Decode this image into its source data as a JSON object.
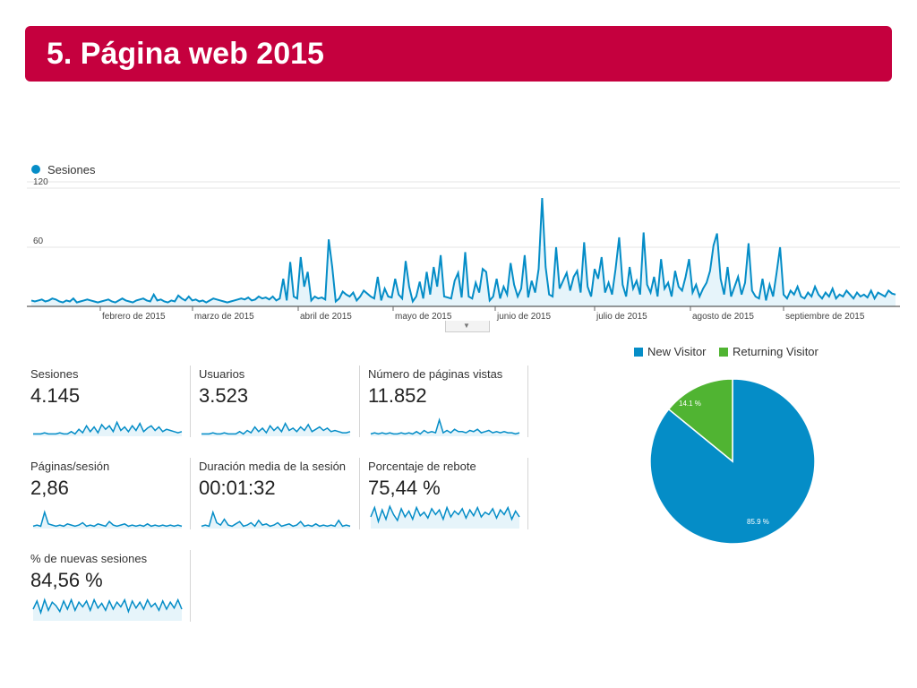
{
  "header": {
    "title": "5. Página web 2015"
  },
  "colors": {
    "accent": "#c5003e",
    "series": "#058dc7",
    "fill": "#e6f4fa",
    "returning": "#50b432"
  },
  "chart_data": [
    {
      "type": "area",
      "legend": "Sesiones",
      "ylim": [
        0,
        120
      ],
      "yticks": [
        60,
        120
      ],
      "month_labels": [
        "febrero de 2015",
        "marzo de 2015",
        "abril de 2015",
        "mayo de 2015",
        "junio de 2015",
        "julio de 2015",
        "agosto de 2015",
        "septiembre de 2015"
      ],
      "values": [
        6,
        5,
        6,
        7,
        5,
        6,
        8,
        7,
        5,
        4,
        6,
        5,
        8,
        4,
        5,
        6,
        7,
        6,
        5,
        4,
        5,
        6,
        7,
        5,
        4,
        6,
        8,
        6,
        5,
        4,
        6,
        7,
        8,
        6,
        5,
        12,
        6,
        7,
        5,
        4,
        6,
        5,
        11,
        8,
        6,
        10,
        6,
        7,
        5,
        6,
        4,
        6,
        8,
        7,
        6,
        5,
        4,
        5,
        6,
        7,
        8,
        7,
        9,
        6,
        7,
        10,
        8,
        9,
        7,
        10,
        6,
        8,
        28,
        6,
        45,
        10,
        8,
        50,
        20,
        35,
        6,
        10,
        8,
        9,
        7,
        68,
        40,
        5,
        8,
        15,
        12,
        10,
        14,
        6,
        10,
        16,
        13,
        10,
        8,
        30,
        6,
        18,
        10,
        9,
        28,
        12,
        8,
        46,
        20,
        5,
        10,
        25,
        8,
        35,
        12,
        40,
        20,
        52,
        10,
        9,
        8,
        26,
        34,
        9,
        55,
        10,
        8,
        24,
        14,
        38,
        35,
        6,
        10,
        28,
        8,
        20,
        12,
        44,
        22,
        10,
        18,
        52,
        9,
        26,
        14,
        38,
        110,
        40,
        12,
        10,
        60,
        18,
        26,
        34,
        16,
        30,
        36,
        14,
        65,
        20,
        10,
        38,
        28,
        50,
        14,
        24,
        12,
        38,
        70,
        22,
        10,
        40,
        18,
        26,
        12,
        75,
        22,
        14,
        30,
        10,
        48,
        18,
        24,
        10,
        36,
        20,
        16,
        30,
        48,
        14,
        22,
        10,
        18,
        24,
        36,
        62,
        74,
        28,
        12,
        40,
        10,
        20,
        30,
        12,
        24,
        64,
        16,
        10,
        8,
        28,
        6,
        22,
        10,
        34,
        60,
        12,
        8,
        16,
        12,
        20,
        10,
        8,
        14,
        10,
        20,
        12,
        8,
        14,
        10,
        18,
        8,
        12,
        10,
        16,
        12,
        8,
        14,
        10,
        12,
        9,
        16,
        8,
        14,
        12,
        10,
        16,
        13,
        12
      ],
      "series_name": "Sesiones"
    },
    {
      "type": "pie",
      "labels": [
        "New Visitor",
        "Returning Visitor"
      ],
      "values": [
        85.9,
        14.1
      ],
      "value_labels": [
        "85.9 %",
        "14.1 %"
      ]
    }
  ],
  "metrics": [
    {
      "label": "Sesiones",
      "value": "4.145",
      "spark": [
        2,
        2,
        2,
        3,
        2,
        2,
        2,
        3,
        2,
        2,
        4,
        2,
        6,
        3,
        9,
        4,
        8,
        3,
        10,
        6,
        9,
        4,
        12,
        5,
        8,
        4,
        9,
        5,
        11,
        4,
        7,
        9,
        5,
        8,
        4,
        6,
        5,
        4,
        3,
        4
      ]
    },
    {
      "label": "Usuarios",
      "value": "3.523",
      "spark": [
        2,
        2,
        2,
        3,
        2,
        2,
        3,
        2,
        2,
        2,
        4,
        2,
        5,
        3,
        8,
        4,
        7,
        3,
        9,
        5,
        8,
        4,
        11,
        5,
        7,
        4,
        8,
        5,
        10,
        4,
        6,
        8,
        5,
        7,
        4,
        5,
        4,
        3,
        3,
        4
      ]
    },
    {
      "label": "Número de páginas vistas",
      "value": "11.852",
      "spark": [
        2,
        3,
        2,
        3,
        2,
        3,
        2,
        2,
        3,
        2,
        3,
        2,
        4,
        2,
        5,
        3,
        4,
        3,
        14,
        3,
        5,
        3,
        6,
        4,
        4,
        3,
        5,
        4,
        6,
        3,
        4,
        5,
        3,
        4,
        3,
        4,
        3,
        3,
        2,
        3
      ]
    },
    {
      "label": "Páginas/sesión",
      "value": "2,86",
      "spark": [
        2,
        3,
        2,
        14,
        4,
        3,
        2,
        3,
        2,
        4,
        3,
        2,
        3,
        5,
        2,
        3,
        2,
        4,
        3,
        2,
        6,
        3,
        2,
        3,
        4,
        2,
        3,
        2,
        3,
        2,
        4,
        2,
        3,
        2,
        3,
        2,
        3,
        2,
        3,
        2
      ]
    },
    {
      "label": "Duración media de la sesión",
      "value": "00:01:32",
      "spark": [
        2,
        3,
        2,
        14,
        5,
        3,
        8,
        3,
        2,
        4,
        6,
        2,
        3,
        5,
        2,
        7,
        3,
        4,
        2,
        3,
        5,
        2,
        3,
        4,
        2,
        3,
        6,
        2,
        3,
        2,
        4,
        2,
        3,
        2,
        3,
        2,
        7,
        2,
        3,
        2
      ]
    },
    {
      "label": "Porcentaje de rebote",
      "value": "75,44 %",
      "spark": [
        10,
        18,
        6,
        16,
        8,
        19,
        12,
        7,
        17,
        10,
        15,
        8,
        18,
        11,
        14,
        9,
        17,
        12,
        16,
        8,
        18,
        10,
        15,
        12,
        17,
        9,
        16,
        11,
        18,
        10,
        14,
        12,
        17,
        9,
        16,
        12,
        18,
        8,
        15,
        10
      ]
    },
    {
      "label": "% de nuevas sesiones",
      "value": "84,56 %",
      "spark": [
        10,
        17,
        7,
        18,
        9,
        16,
        13,
        8,
        17,
        10,
        18,
        9,
        16,
        12,
        17,
        9,
        18,
        11,
        15,
        9,
        17,
        10,
        16,
        12,
        18,
        8,
        17,
        11,
        16,
        10,
        18,
        12,
        15,
        9,
        17,
        10,
        16,
        11,
        18,
        10
      ]
    }
  ]
}
